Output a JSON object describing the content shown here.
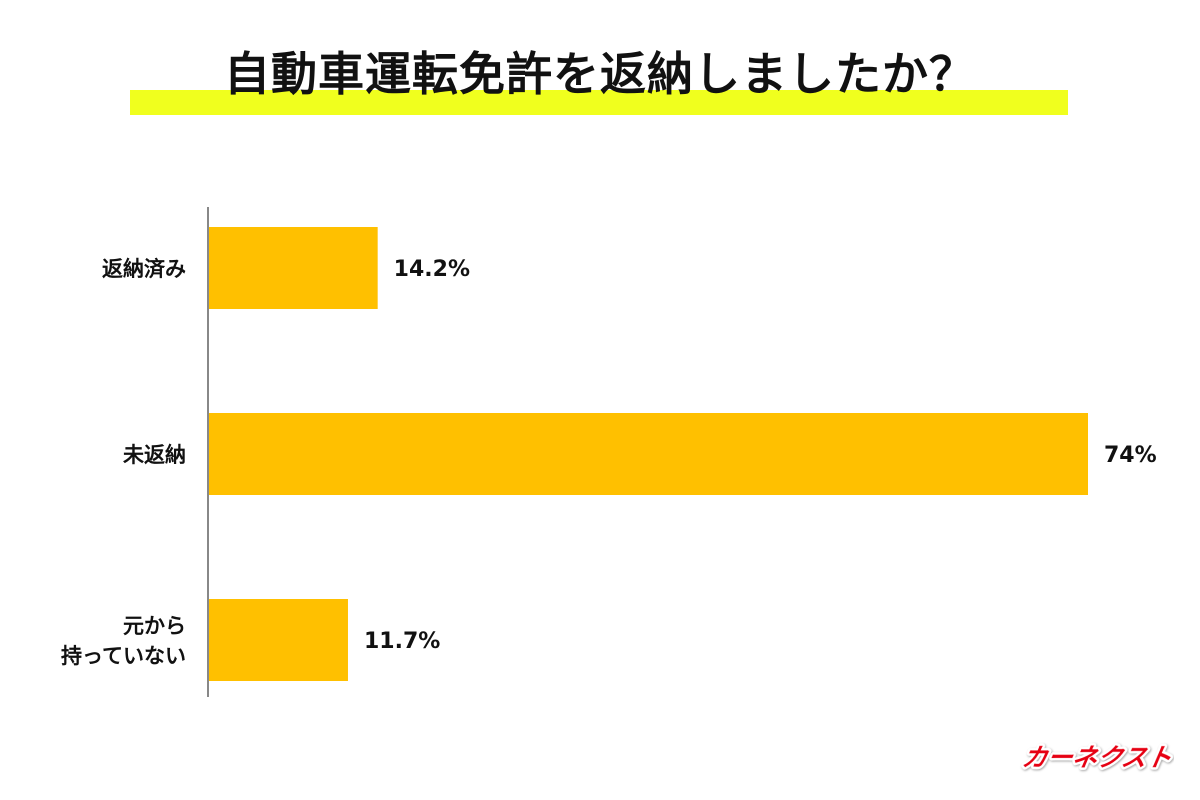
{
  "chart_data": {
    "type": "bar",
    "orientation": "horizontal",
    "title": "自動車運転免許を返納しましたか？",
    "categories": [
      [
        "返納済み"
      ],
      [
        "未返納"
      ],
      [
        "元から",
        "持っていない"
      ]
    ],
    "values": [
      14.2,
      74,
      11.7
    ],
    "value_labels": [
      "14.2%",
      "74%",
      "11.7%"
    ],
    "xlim": [
      0,
      74
    ],
    "grid": false,
    "bar_color": "#ffc000",
    "axis_color": "#888888"
  },
  "logo": {
    "text": "カーネクスト",
    "fill_color": "#e60012",
    "outline_color": "#ffffff"
  }
}
